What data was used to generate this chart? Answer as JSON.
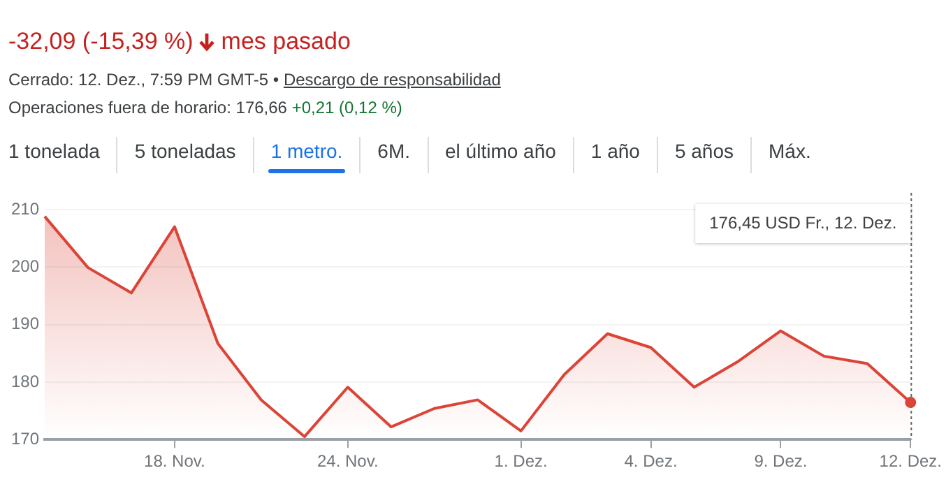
{
  "chart_data": {
    "type": "area",
    "categories": [
      null,
      null,
      null,
      "18. Nov.",
      null,
      null,
      null,
      "24. Nov.",
      null,
      null,
      null,
      "1. Dez.",
      null,
      null,
      "4. Dez.",
      null,
      null,
      "9. Dez.",
      null,
      null,
      "12. Dez."
    ],
    "series": [
      {
        "color": "#db4437",
        "values": [
          208.8,
          199.9,
          195.5,
          207,
          186.7,
          176.9,
          170.5,
          179.1,
          172.2,
          175.4,
          176.9,
          171.5,
          181.3,
          188.4,
          186,
          179.1,
          183.5,
          188.9,
          184.5,
          183.2,
          176.45
        ]
      }
    ],
    "ylim": [
      170,
      210
    ],
    "yticks": [
      170,
      180,
      190,
      200,
      210
    ],
    "grid": "y",
    "legend": false,
    "marker": "none",
    "line_style": "solid",
    "annotations": [
      "-32,09 (-15,39 %)",
      "mes pasado",
      "Cerrado: 12. Dez., 7:59 PM GMT-5 •",
      "Descargo de responsabilidad",
      "Operaciones fuera de horario:",
      "176,66",
      "+0,21 (0,12 %)",
      "1 tonelada",
      "5 toneladas",
      "1 metro.",
      "6M.",
      "el último año",
      "1 año",
      "5 años",
      "Máx.",
      "176,45 USD Fr., 12. Dez."
    ]
  }
}
